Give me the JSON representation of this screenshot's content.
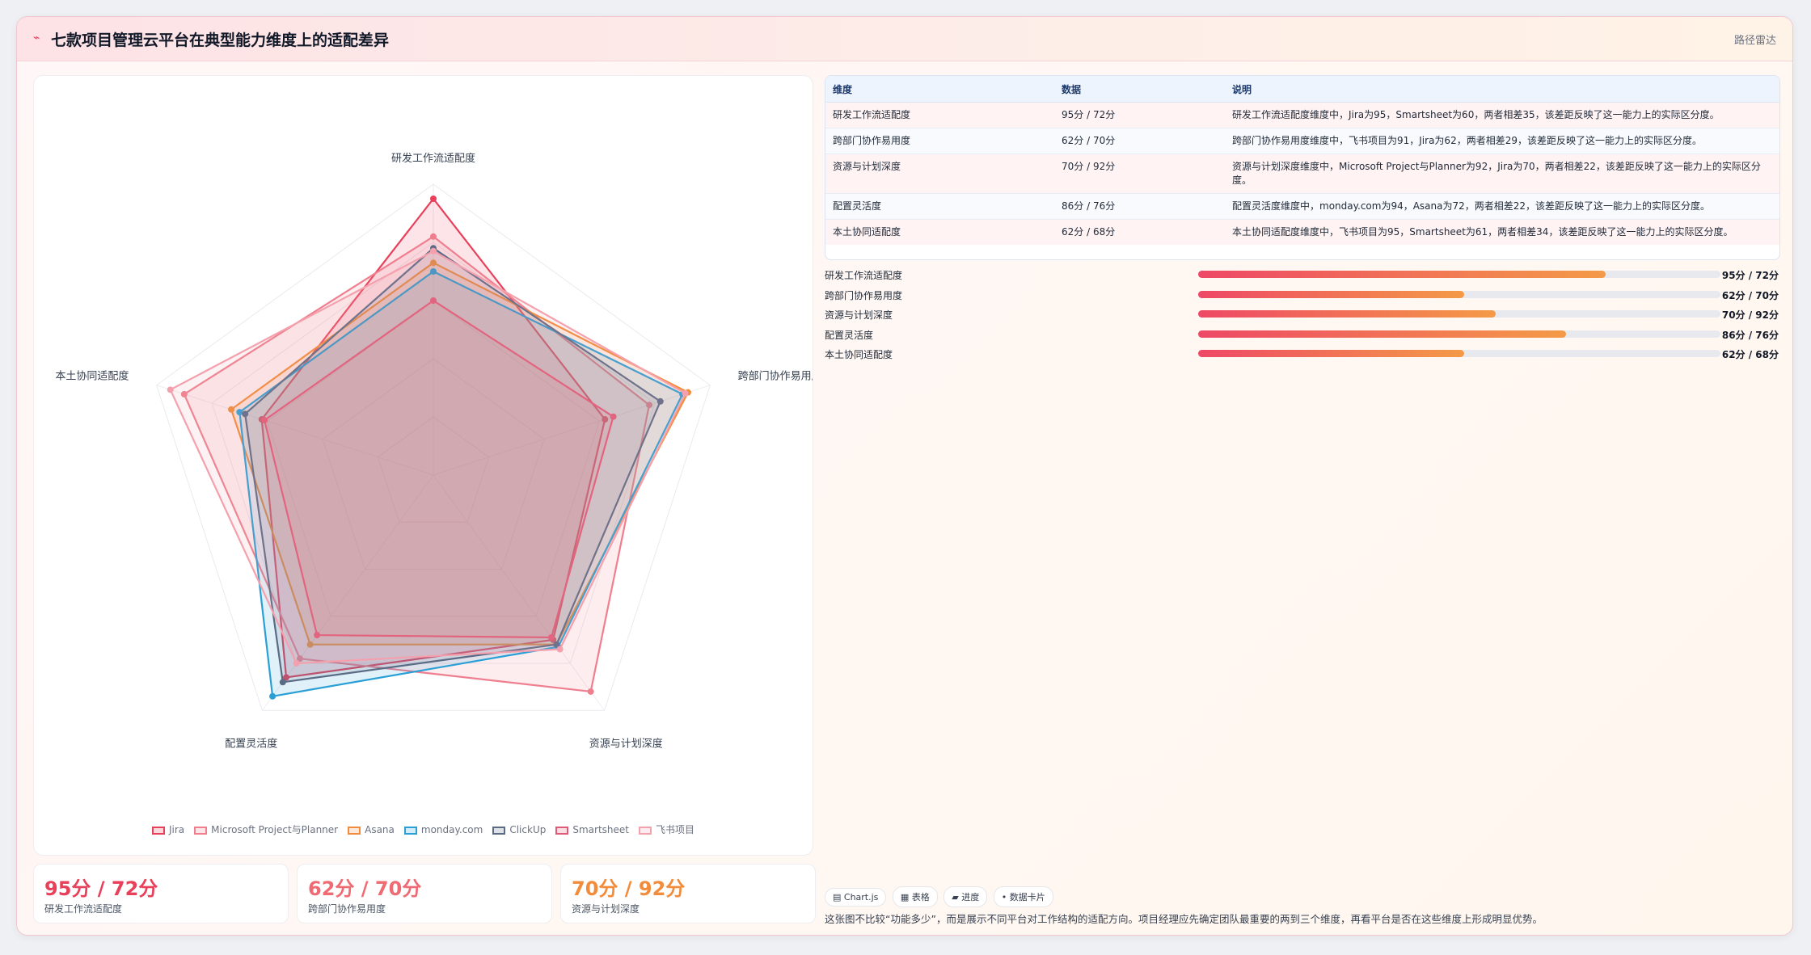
{
  "header": {
    "logo_glyph": "⌁",
    "title": "七款项目管理云平台在典型能力维度上的适配差异",
    "badge": "路径雷达"
  },
  "chart_data": {
    "type": "radar",
    "axes": [
      "研发工作流适配度",
      "跨部门协作易用度",
      "资源与计划深度",
      "配置灵活度",
      "本土协同适配度"
    ],
    "range": [
      0,
      100
    ],
    "grid": true,
    "legend_position": "bottom",
    "series": [
      {
        "name": "Jira",
        "values": [
          95,
          62,
          70,
          86,
          62
        ],
        "color": "#e8405a"
      },
      {
        "name": "Microsoft Project与Planner",
        "values": [
          82,
          78,
          92,
          78,
          90
        ],
        "color": "#ef7f8f"
      },
      {
        "name": "Asana",
        "values": [
          73,
          92,
          72,
          72,
          73
        ],
        "color": "#f28c3a"
      },
      {
        "name": "monday.com",
        "values": [
          70,
          90,
          73,
          94,
          70
        ],
        "color": "#2a9fd6"
      },
      {
        "name": "ClickUp",
        "values": [
          78,
          82,
          72,
          88,
          68
        ],
        "color": "#5a6b85"
      },
      {
        "name": "Smartsheet",
        "values": [
          60,
          65,
          69,
          68,
          61
        ],
        "color": "#e05a78"
      },
      {
        "name": "飞书项目",
        "values": [
          77,
          91,
          74,
          80,
          95
        ],
        "color": "#f4a0ad"
      }
    ]
  },
  "legend": [
    "Jira",
    "Microsoft Project与Planner",
    "Asana",
    "monday.com",
    "ClickUp",
    "Smartsheet",
    "飞书项目"
  ],
  "stats": [
    {
      "value": "95分 / 72分",
      "label": "研发工作流适配度",
      "color": "#e8405a"
    },
    {
      "value": "62分 / 70分",
      "label": "跨部门协作易用度",
      "color": "#ef6a72"
    },
    {
      "value": "70分 / 92分",
      "label": "资源与计划深度",
      "color": "#f28c3a"
    }
  ],
  "table": {
    "headers": [
      "维度",
      "数据",
      "说明"
    ],
    "rows": [
      [
        "研发工作流适配度",
        "95分 / 72分",
        "研发工作流适配度维度中，Jira为95，Smartsheet为60，两者相差35，该差距反映了这一能力上的实际区分度。"
      ],
      [
        "跨部门协作易用度",
        "62分 / 70分",
        "跨部门协作易用度维度中，飞书项目为91，Jira为62，两者相差29，该差距反映了这一能力上的实际区分度。"
      ],
      [
        "资源与计划深度",
        "70分 / 92分",
        "资源与计划深度维度中，Microsoft Project与Planner为92，Jira为70，两者相差22，该差距反映了这一能力上的实际区分度。"
      ],
      [
        "配置灵活度",
        "86分 / 76分",
        "配置灵活度维度中，monday.com为94，Asana为72，两者相差22，该差距反映了这一能力上的实际区分度。"
      ],
      [
        "本土协同适配度",
        "62分 / 68分",
        "本土协同适配度维度中，飞书项目为95，Smartsheet为61，两者相差34，该差距反映了这一能力上的实际区分度。"
      ]
    ]
  },
  "progress": [
    {
      "label": "研发工作流适配度",
      "value": "95分 / 72分",
      "fill": 0.78
    },
    {
      "label": "跨部门协作易用度",
      "value": "62分 / 70分",
      "fill": 0.51
    },
    {
      "label": "资源与计划深度",
      "value": "70分 / 92分",
      "fill": 0.57
    },
    {
      "label": "配置灵活度",
      "value": "86分 / 76分",
      "fill": 0.705
    },
    {
      "label": "本土协同适配度",
      "value": "62分 / 68分",
      "fill": 0.51
    }
  ],
  "chips": [
    "▤ Chart.js",
    "▦ 表格",
    "▰ 进度",
    "• 数据卡片"
  ],
  "note": "这张图不比较“功能多少”，而是展示不同平台对工作结构的适配方向。项目经理应先确定团队最重要的两到三个维度，再看平台是否在这些维度上形成明显优势。"
}
